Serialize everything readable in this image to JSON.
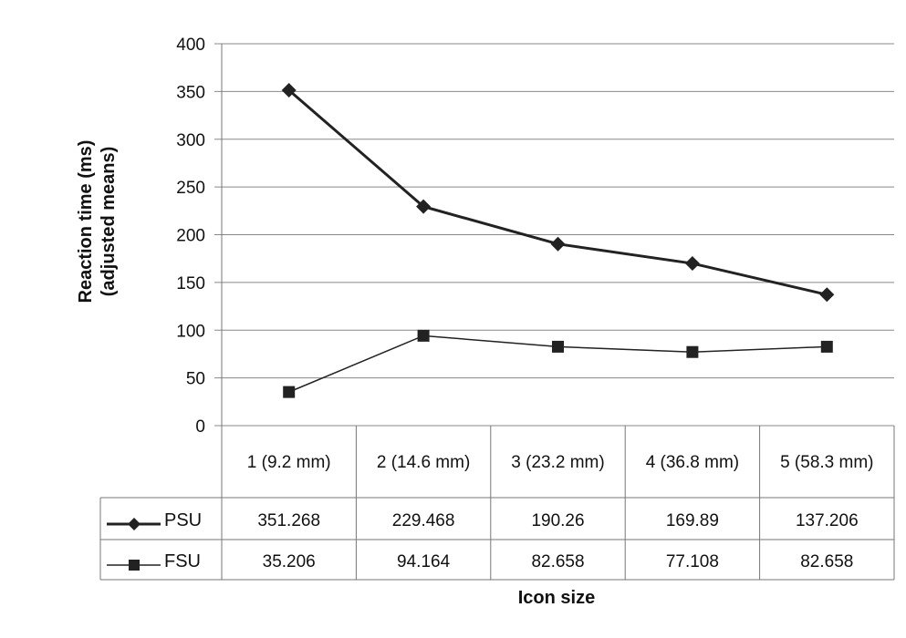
{
  "chart_data": {
    "type": "line",
    "title": "",
    "xlabel": "Icon size",
    "ylabel_lines": [
      "Reaction time (ms)",
      "(adjusted means)"
    ],
    "ylim": [
      0,
      400
    ],
    "yticks": [
      "0",
      "50",
      "100",
      "150",
      "200",
      "250",
      "300",
      "350",
      "400"
    ],
    "categories": [
      "1 (9.2 mm)",
      "2 (14.6 mm)",
      "3 (23.2 mm)",
      "4 (36.8 mm)",
      "5 (58.3 mm)"
    ],
    "grid": true,
    "legend": "data table below plot",
    "series": [
      {
        "name": "PSU",
        "marker": "diamond",
        "values": [
          351.268,
          229.468,
          190.26,
          169.89,
          137.206
        ],
        "table_values": [
          "351.268",
          "229.468",
          "190.26",
          "169.89",
          "137.206"
        ]
      },
      {
        "name": "FSU",
        "marker": "square",
        "values": [
          35.206,
          94.164,
          82.658,
          77.108,
          82.658
        ],
        "table_values": [
          "35.206",
          "94.164",
          "82.658",
          "77.108",
          "82.658"
        ]
      }
    ]
  },
  "colors": {
    "line": "#222222",
    "grid": "#888888",
    "table_border": "#777777"
  }
}
